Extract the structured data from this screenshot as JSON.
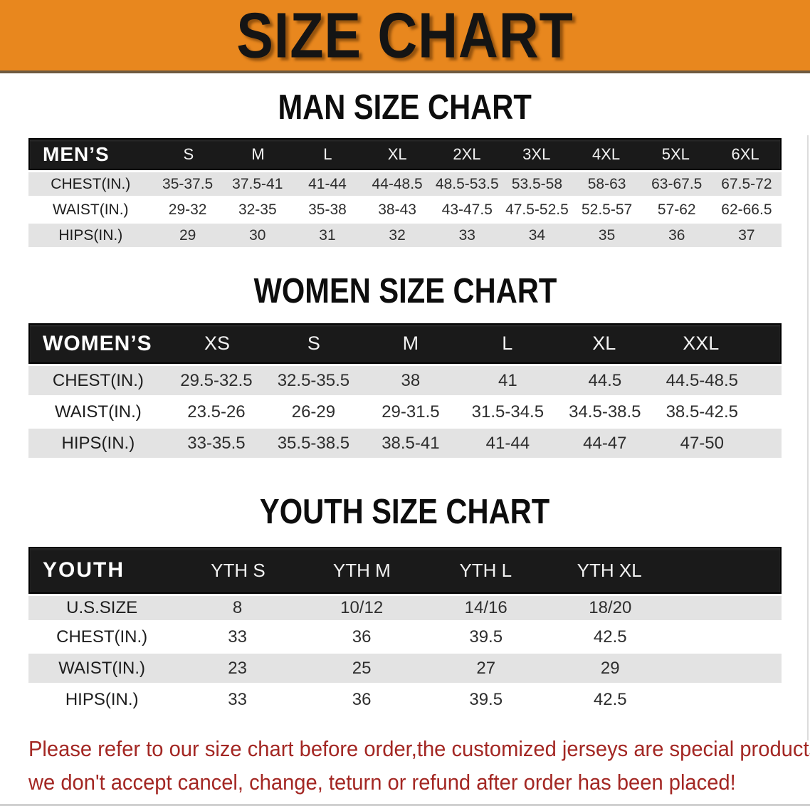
{
  "banner": {
    "title": "SIZE CHART"
  },
  "colors": {
    "banner_orange": "#E8871E",
    "banner_edge": "#6e5a40",
    "header_black": "#1a1a1a",
    "row_gray": "#e3e3e3",
    "note_red": "#A32723"
  },
  "tables": [
    {
      "id": "men",
      "heading": "MAN SIZE CHART",
      "corner_label": "MEN’S",
      "size_columns": [
        "S",
        "M",
        "L",
        "XL",
        "2XL",
        "3XL",
        "4XL",
        "5XL",
        "6XL"
      ],
      "rows": [
        {
          "label": "CHEST(IN.)",
          "shade": "gray",
          "values": [
            "35-37.5",
            "37.5-41",
            "41-44",
            "44-48.5",
            "48.5-53.5",
            "53.5-58",
            "58-63",
            "63-67.5",
            "67.5-72"
          ]
        },
        {
          "label": "WAIST(IN.)",
          "shade": "white",
          "values": [
            "29-32",
            "32-35",
            "35-38",
            "38-43",
            "43-47.5",
            "47.5-52.5",
            "52.5-57",
            "57-62",
            "62-66.5"
          ]
        },
        {
          "label": "HIPS(IN.)",
          "shade": "gray",
          "values": [
            "29",
            "30",
            "31",
            "32",
            "33",
            "34",
            "35",
            "36",
            "37"
          ]
        }
      ]
    },
    {
      "id": "women",
      "heading": "WOMEN SIZE CHART",
      "corner_label": "WOMEN’S",
      "size_columns": [
        "XS",
        "S",
        "M",
        "L",
        "XL",
        "XXL"
      ],
      "rows": [
        {
          "label": "CHEST(IN.)",
          "shade": "gray",
          "values": [
            "29.5-32.5",
            "32.5-35.5",
            "38",
            "41",
            "44.5",
            "44.5-48.5"
          ]
        },
        {
          "label": "WAIST(IN.)",
          "shade": "white",
          "values": [
            "23.5-26",
            "26-29",
            "29-31.5",
            "31.5-34.5",
            "34.5-38.5",
            "38.5-42.5"
          ]
        },
        {
          "label": "HIPS(IN.)",
          "shade": "gray",
          "values": [
            "33-35.5",
            "35.5-38.5",
            "38.5-41",
            "41-44",
            "44-47",
            "47-50"
          ]
        }
      ]
    },
    {
      "id": "youth",
      "heading": "YOUTH SIZE CHART",
      "corner_label": "YOUTH",
      "size_columns": [
        "YTH S",
        "YTH M",
        "YTH L",
        "YTH XL"
      ],
      "rows": [
        {
          "label": "U.S.SIZE",
          "shade": "gray",
          "values": [
            "8",
            "10/12",
            "14/16",
            "18/20"
          ]
        },
        {
          "label": "CHEST(IN.)",
          "shade": "white",
          "values": [
            "33",
            "36",
            "39.5",
            "42.5"
          ]
        },
        {
          "label": "WAIST(IN.)",
          "shade": "gray",
          "values": [
            "23",
            "25",
            "27",
            "29"
          ]
        },
        {
          "label": "HIPS(IN.)",
          "shade": "white",
          "values": [
            "33",
            "36",
            "39.5",
            "42.5"
          ]
        }
      ]
    }
  ],
  "footer_note": {
    "line1": "Please refer to our size chart before order,the customized jerseys are special products,",
    "line2": "we don't accept cancel, change, teturn or refund after order has been placed!"
  }
}
